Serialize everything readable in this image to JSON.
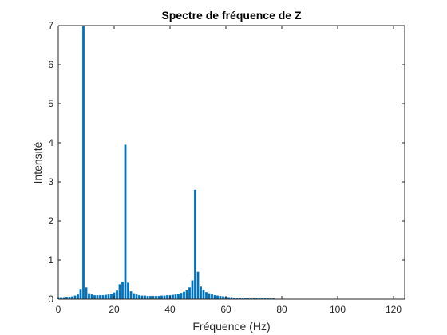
{
  "chart_data": {
    "type": "bar",
    "title": "Spectre de fréquence de Z",
    "xlabel": "Fréquence (Hz)",
    "ylabel": "Intensité",
    "xlim": [
      0,
      124
    ],
    "ylim": [
      0,
      7
    ],
    "xticks": [
      0,
      20,
      40,
      60,
      80,
      100,
      120
    ],
    "yticks": [
      0,
      1,
      2,
      3,
      4,
      5,
      6,
      7
    ],
    "bar_color": "#0072BD",
    "grid": false,
    "x": [
      0,
      1,
      2,
      3,
      4,
      5,
      6,
      7,
      8,
      9,
      10,
      11,
      12,
      13,
      14,
      15,
      16,
      17,
      18,
      19,
      20,
      21,
      22,
      23,
      24,
      25,
      26,
      27,
      28,
      29,
      30,
      31,
      32,
      33,
      34,
      35,
      36,
      37,
      38,
      39,
      40,
      41,
      42,
      43,
      44,
      45,
      46,
      47,
      48,
      49,
      50,
      51,
      52,
      53,
      54,
      55,
      56,
      57,
      58,
      59,
      60,
      61,
      62,
      63,
      64,
      65,
      66,
      67,
      68,
      69,
      70,
      71,
      72,
      73,
      74,
      75,
      76,
      77,
      78,
      79,
      80,
      81,
      82,
      83,
      84,
      85,
      86,
      87,
      88,
      89,
      90,
      91,
      92,
      93,
      94,
      95,
      96,
      97,
      98,
      99,
      100,
      101,
      102,
      103,
      104,
      105,
      106,
      107,
      108,
      109,
      110,
      111,
      112,
      113,
      114,
      115,
      116,
      117,
      118,
      119,
      120,
      121,
      122,
      123
    ],
    "values": [
      0.05,
      0.05,
      0.05,
      0.06,
      0.06,
      0.07,
      0.09,
      0.12,
      0.26,
      7.0,
      0.3,
      0.15,
      0.12,
      0.1,
      0.1,
      0.1,
      0.1,
      0.11,
      0.12,
      0.14,
      0.17,
      0.22,
      0.38,
      0.45,
      3.95,
      0.42,
      0.2,
      0.15,
      0.12,
      0.1,
      0.09,
      0.09,
      0.08,
      0.08,
      0.08,
      0.08,
      0.08,
      0.09,
      0.09,
      0.1,
      0.1,
      0.11,
      0.12,
      0.14,
      0.16,
      0.19,
      0.23,
      0.3,
      0.48,
      2.8,
      0.7,
      0.32,
      0.24,
      0.18,
      0.15,
      0.12,
      0.1,
      0.09,
      0.08,
      0.07,
      0.06,
      0.05,
      0.05,
      0.04,
      0.04,
      0.03,
      0.03,
      0.03,
      0.03,
      0.02,
      0.02,
      0.02,
      0.02,
      0.02,
      0.02,
      0.02,
      0.02,
      0.02,
      0.01,
      0.01,
      0.01,
      0.01,
      0.01,
      0.01,
      0.01,
      0.01,
      0.01,
      0.01,
      0.01,
      0.01,
      0.01,
      0.01,
      0.01,
      0.01,
      0.01,
      0.01,
      0.01,
      0.01,
      0.01,
      0.01,
      0.01,
      0.01,
      0.01,
      0.01,
      0.01,
      0.01,
      0.01,
      0.01,
      0.01,
      0.01,
      0.01,
      0.01,
      0.01,
      0.01,
      0.01,
      0.01,
      0.01,
      0.01,
      0.01,
      0.01,
      0.01,
      0.01,
      0.01,
      0.01
    ]
  }
}
